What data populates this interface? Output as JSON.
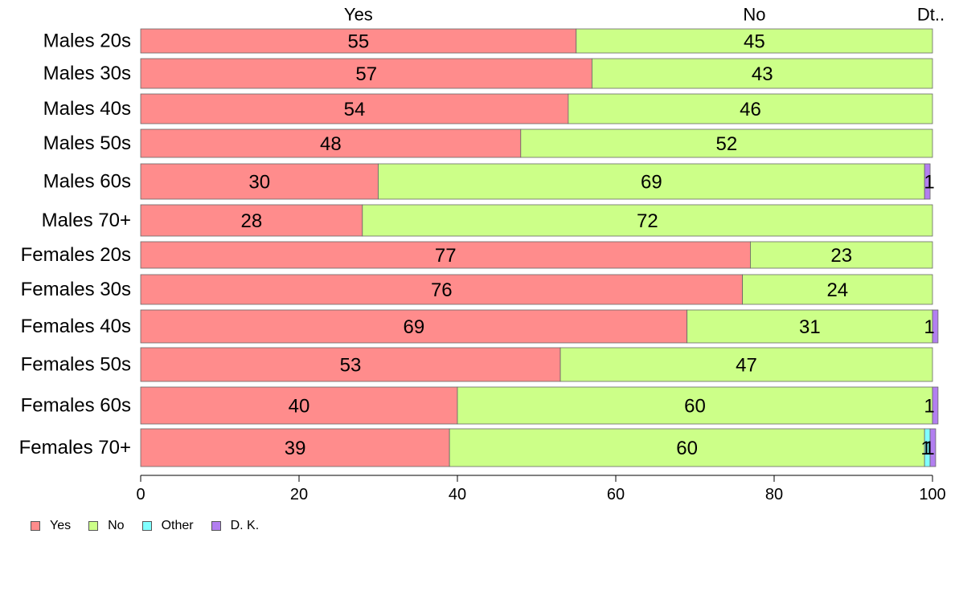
{
  "chart_data": {
    "type": "bar",
    "orientation": "horizontal",
    "stacked": true,
    "categories": [
      "Males 20s",
      "Males 30s",
      "Males 40s",
      "Males 50s",
      "Males 60s",
      "Males 70+",
      "Females 20s",
      "Females 30s",
      "Females 40s",
      "Females 50s",
      "Females 60s",
      "Females 70+"
    ],
    "series": [
      {
        "name": "Yes",
        "color": "#FF8C8C",
        "values": [
          55,
          57,
          54,
          48,
          30,
          28,
          77,
          76,
          69,
          53,
          40,
          39
        ]
      },
      {
        "name": "No",
        "color": "#CCFF88",
        "values": [
          45,
          43,
          46,
          52,
          69,
          72,
          23,
          24,
          31,
          47,
          60,
          60
        ]
      },
      {
        "name": "Other",
        "color": "#80FFFF",
        "values": [
          0,
          0,
          0,
          0,
          0,
          0,
          0,
          0,
          0,
          0,
          0,
          0.7
        ]
      },
      {
        "name": "D. K.",
        "color": "#B27FF0",
        "values": [
          0,
          0,
          0,
          0,
          0.7,
          0,
          0,
          0,
          0.7,
          0,
          0.7,
          0.7
        ]
      }
    ],
    "value_labels": [
      [
        "55",
        "45",
        "",
        ""
      ],
      [
        "57",
        "43",
        "",
        ""
      ],
      [
        "54",
        "46",
        "",
        ""
      ],
      [
        "48",
        "52",
        "",
        ""
      ],
      [
        "30",
        "69",
        "",
        "1"
      ],
      [
        "28",
        "72",
        "",
        ""
      ],
      [
        "77",
        "23",
        "",
        ""
      ],
      [
        "76",
        "24",
        "",
        ""
      ],
      [
        "69",
        "31",
        "",
        "1"
      ],
      [
        "53",
        "47",
        "",
        ""
      ],
      [
        "40",
        "60",
        "",
        "1"
      ],
      [
        "39",
        "60",
        "1",
        "1"
      ]
    ],
    "top_labels": [
      "Yes",
      "No",
      "Dt.."
    ],
    "xlim": [
      0,
      100
    ],
    "xticks": [
      "0",
      "20",
      "40",
      "60",
      "80",
      "100"
    ],
    "legend_position": "bottom-left",
    "grid": false
  }
}
